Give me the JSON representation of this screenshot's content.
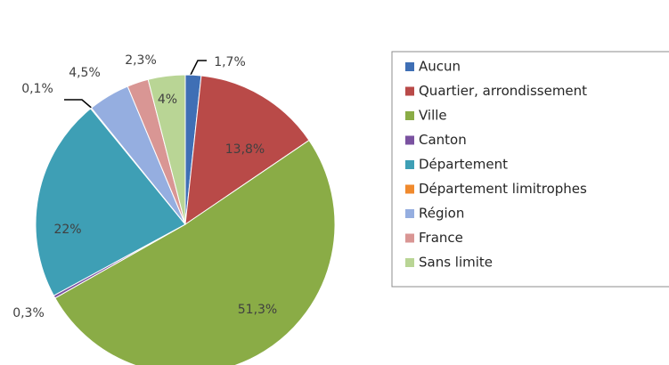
{
  "chart_data": {
    "type": "pie",
    "categories": [
      "Aucun",
      "Quartier, arrondissement",
      "Ville",
      "Canton",
      "Département",
      "Département limitrophes",
      "Région",
      "France",
      "Sans limite"
    ],
    "values": [
      1.7,
      13.8,
      51.3,
      0.3,
      22,
      0.1,
      4.5,
      2.3,
      4
    ],
    "value_labels": [
      "1,7%",
      "13,8%",
      "51,3%",
      "0,3%",
      "22%",
      "0,1%",
      "4,5%",
      "2,3%",
      "4%"
    ],
    "colors": [
      "#3f6fb5",
      "#b94a48",
      "#8aac46",
      "#7a52a0",
      "#3e9fb5",
      "#f08a2d",
      "#95aee0",
      "#d99694",
      "#b9d595"
    ],
    "legend": "right"
  }
}
